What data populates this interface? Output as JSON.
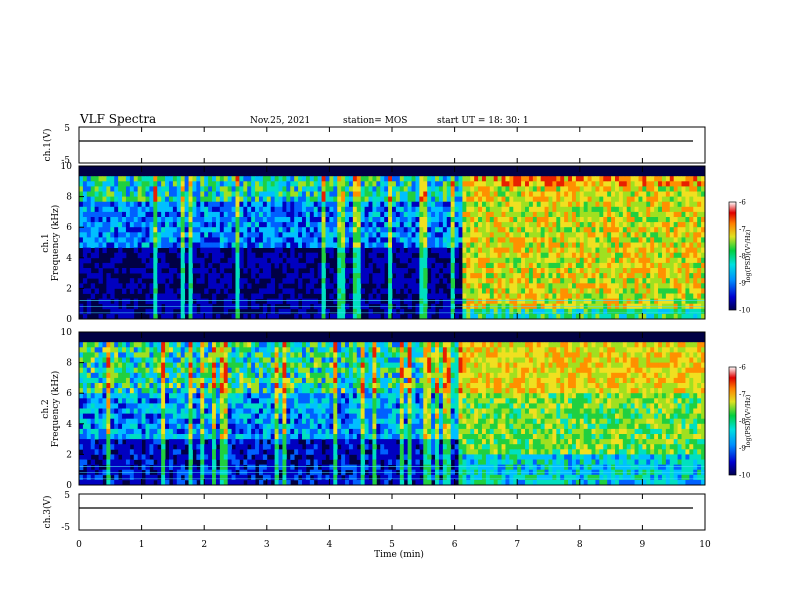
{
  "header": {
    "title": "VLF Spectra",
    "date": "Nov.25, 2021",
    "station": "station= MOS",
    "start": "start  UT =   18: 30: 1"
  },
  "chart_data": [
    {
      "type": "line",
      "ylabel": "ch.1(V)",
      "ylim": [
        -5,
        5
      ],
      "yticks": [
        "5",
        "-5"
      ],
      "x": [
        0,
        10
      ],
      "values": [
        0,
        0
      ],
      "xlim": [
        0,
        10
      ]
    },
    {
      "type": "heatmap",
      "ylabel_line1": "ch.1",
      "ylabel_line2": "Frequency (kHz)",
      "ylim": [
        0,
        10
      ],
      "yticks": [
        "0",
        "2",
        "4",
        "6",
        "8",
        "10"
      ],
      "xlim": [
        0,
        10
      ],
      "event_time_min": 6.15,
      "colorbar": {
        "label": "log(PSD)(V²/Hz)",
        "range": [
          -10,
          -6
        ],
        "ticks": [
          "-6",
          "-7",
          "-8",
          "-9",
          "-10"
        ]
      }
    },
    {
      "type": "heatmap",
      "ylabel_line1": "ch.2",
      "ylabel_line2": "Frequency (kHz)",
      "ylim": [
        0,
        10
      ],
      "yticks": [
        "0",
        "2",
        "4",
        "6",
        "8",
        "10"
      ],
      "xlim": [
        0,
        10
      ],
      "event_time_min": 6.15,
      "colorbar": {
        "label": "log(PSD)(V²/Hz)",
        "range": [
          -10,
          -6
        ],
        "ticks": [
          "-6",
          "-7",
          "-8",
          "-9",
          "-10"
        ]
      }
    },
    {
      "type": "line",
      "ylabel": "ch.3(V)",
      "ylim": [
        -5,
        5
      ],
      "yticks": [
        "5",
        "-5"
      ],
      "x": [
        0,
        10
      ],
      "values": [
        0,
        0
      ],
      "xlim": [
        0,
        10
      ]
    }
  ],
  "xaxis": {
    "label": "Time (min)",
    "ticks": [
      "0",
      "1",
      "2",
      "3",
      "4",
      "5",
      "6",
      "7",
      "8",
      "9",
      "10"
    ]
  }
}
